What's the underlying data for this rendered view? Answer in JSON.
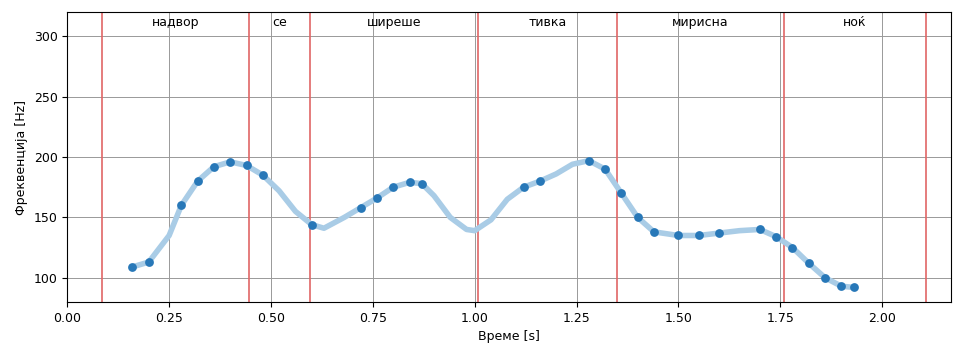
{
  "chart_data": {
    "type": "line",
    "x_label": "Време [s]",
    "y_label": "Фреквенција [Hz]",
    "x": [
      0.16,
      0.2,
      0.25,
      0.28,
      0.32,
      0.36,
      0.4,
      0.44,
      0.48,
      0.52,
      0.56,
      0.6,
      0.63,
      0.68,
      0.72,
      0.76,
      0.8,
      0.84,
      0.87,
      0.9,
      0.94,
      0.98,
      1.0,
      1.04,
      1.08,
      1.12,
      1.16,
      1.2,
      1.24,
      1.28,
      1.32,
      1.36,
      1.4,
      1.44,
      1.5,
      1.55,
      1.6,
      1.65,
      1.7,
      1.74,
      1.78,
      1.82,
      1.86,
      1.9,
      1.93
    ],
    "series": [
      {
        "type": "line",
        "color": "#a9cce6",
        "line_style": "solid",
        "values": [
          109,
          113,
          135,
          160,
          180,
          192,
          196,
          193,
          185,
          172,
          155,
          144,
          141,
          150,
          158,
          166,
          175,
          179,
          178,
          168,
          150,
          140,
          139,
          148,
          165,
          175,
          180,
          186,
          194,
          197,
          190,
          170,
          150,
          138,
          135,
          135,
          137,
          139,
          140,
          134,
          125,
          112,
          100,
          93,
          92
        ]
      },
      {
        "type": "scatter",
        "color": "#2878b8",
        "marker": "o",
        "values": [
          109,
          113,
          null,
          160,
          180,
          192,
          196,
          193,
          185,
          null,
          null,
          144,
          null,
          null,
          158,
          166,
          175,
          179,
          178,
          null,
          null,
          null,
          null,
          null,
          null,
          175,
          180,
          null,
          null,
          197,
          190,
          170,
          150,
          138,
          135,
          135,
          137,
          null,
          140,
          134,
          125,
          112,
          100,
          93,
          92
        ]
      }
    ],
    "segments": [
      {
        "label": "надвор",
        "start": 0.085,
        "end": 0.445
      },
      {
        "label": "се",
        "start": 0.445,
        "end": 0.596
      },
      {
        "label": "ширеше",
        "start": 0.596,
        "end": 1.007
      },
      {
        "label": "тивка",
        "start": 1.007,
        "end": 1.35
      },
      {
        "label": "мирисна",
        "start": 1.35,
        "end": 1.759
      },
      {
        "label": "ноќ",
        "start": 1.759,
        "end": 2.107
      }
    ],
    "segments_color": "#e06666",
    "xlim": [
      0,
      2.17
    ],
    "ylim": [
      80,
      320
    ],
    "xticks": [
      {
        "value": 0,
        "label": "0.00"
      },
      {
        "value": 0.25,
        "label": "0.25"
      },
      {
        "value": 0.5,
        "label": "0.50"
      },
      {
        "value": 0.75,
        "label": "0.75"
      },
      {
        "value": 1.0,
        "label": "1.00"
      },
      {
        "value": 1.25,
        "label": "1.25"
      },
      {
        "value": 1.5,
        "label": "1.50"
      },
      {
        "value": 1.75,
        "label": "1.75"
      },
      {
        "value": 2.0,
        "label": "2.00"
      }
    ],
    "yticks": [
      100,
      150,
      200,
      250,
      300
    ],
    "grid": true
  }
}
